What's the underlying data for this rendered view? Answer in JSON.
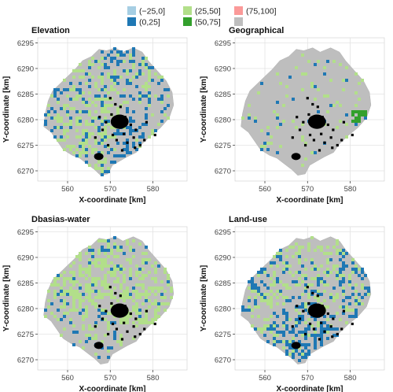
{
  "chart_data": {
    "type": "heatmap",
    "legend": {
      "placement": "top",
      "items": [
        {
          "label": "(−25,0]",
          "color": "#a6cee3"
        },
        {
          "label": "(25,50]",
          "color": "#b2df8a"
        },
        {
          "label": "(75,100]",
          "color": "#fb9a99"
        },
        {
          "label": "(0,25]",
          "color": "#1f78b4"
        },
        {
          "label": "(50,75]",
          "color": "#33a02c"
        },
        {
          "label": "",
          "color": "#bebebe"
        }
      ]
    },
    "axes": {
      "xlabel": "X-coordinate [km]",
      "ylabel": "Y-coordinate [km]",
      "xticks": [
        560,
        570,
        580
      ],
      "yticks": [
        6270,
        6275,
        6280,
        6285,
        6290,
        6295
      ],
      "xlim": [
        553,
        588
      ],
      "ylim": [
        6268,
        6296
      ],
      "grid": true
    },
    "region_color": "#bebebe",
    "marker_color": "#000000",
    "panels": [
      {
        "title": "Elevation",
        "dominant_classes": [
          "(25,50]",
          "(0,25]"
        ]
      },
      {
        "title": "Geographical",
        "dominant_classes": [
          "(0,25]",
          "(25,50]",
          "(50,75]"
        ]
      },
      {
        "title": "Dbasias-water",
        "dominant_classes": [
          "(25,50]",
          "(0,25]"
        ]
      },
      {
        "title": "Land-use",
        "dominant_classes": [
          "(0,25]",
          "(25,50]"
        ]
      }
    ]
  }
}
